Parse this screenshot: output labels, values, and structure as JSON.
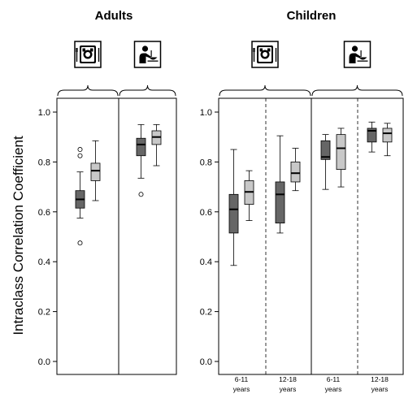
{
  "chart_data": {
    "type": "box",
    "ylabel": "Intraclass Correlation Coefficient",
    "ylim": [
      0.0,
      1.0
    ],
    "yticks": [
      "0.0",
      "0.2",
      "0.4",
      "0.6",
      "0.8",
      "1.0"
    ],
    "colors": {
      "dark": "#666666",
      "light": "#c8c8c8",
      "frame": "#000000"
    },
    "icons": [
      "food-tray-icon",
      "person-eating-icon"
    ],
    "panels": [
      {
        "title": "Adults",
        "groups": [
          {
            "icon": "food-tray-icon",
            "label": [],
            "boxes": [
              {
                "color": "dark",
                "min": 0.575,
                "q1": 0.615,
                "median": 0.65,
                "q3": 0.685,
                "max": 0.76,
                "outliers": [
                  0.85,
                  0.825,
                  0.475
                ]
              },
              {
                "color": "light",
                "min": 0.645,
                "q1": 0.725,
                "median": 0.765,
                "q3": 0.795,
                "max": 0.885,
                "outliers": []
              }
            ]
          },
          {
            "icon": "person-eating-icon",
            "label": [],
            "boxes": [
              {
                "color": "dark",
                "min": 0.735,
                "q1": 0.825,
                "median": 0.87,
                "q3": 0.895,
                "max": 0.95,
                "outliers": [
                  0.67
                ]
              },
              {
                "color": "light",
                "min": 0.785,
                "q1": 0.87,
                "median": 0.9,
                "q3": 0.925,
                "max": 0.95,
                "outliers": []
              }
            ]
          }
        ]
      },
      {
        "title": "Children",
        "groups": [
          {
            "icon": "food-tray-icon",
            "label": [
              "6-11",
              "years"
            ],
            "boxes": [
              {
                "color": "dark",
                "min": 0.385,
                "q1": 0.515,
                "median": 0.61,
                "q3": 0.67,
                "max": 0.85,
                "outliers": []
              },
              {
                "color": "light",
                "min": 0.565,
                "q1": 0.63,
                "median": 0.68,
                "q3": 0.725,
                "max": 0.765,
                "outliers": []
              }
            ]
          },
          {
            "icon": "food-tray-icon",
            "label": [
              "12-18",
              "years"
            ],
            "boxes": [
              {
                "color": "dark",
                "min": 0.515,
                "q1": 0.555,
                "median": 0.67,
                "q3": 0.72,
                "max": 0.905,
                "outliers": []
              },
              {
                "color": "light",
                "min": 0.685,
                "q1": 0.72,
                "median": 0.755,
                "q3": 0.8,
                "max": 0.855,
                "outliers": []
              }
            ]
          },
          {
            "icon": "person-eating-icon",
            "label": [
              "6-11",
              "years"
            ],
            "boxes": [
              {
                "color": "dark",
                "min": 0.69,
                "q1": 0.81,
                "median": 0.82,
                "q3": 0.885,
                "max": 0.91,
                "outliers": []
              },
              {
                "color": "light",
                "min": 0.7,
                "q1": 0.77,
                "median": 0.855,
                "q3": 0.91,
                "max": 0.935,
                "outliers": []
              }
            ]
          },
          {
            "icon": "person-eating-icon",
            "label": [
              "12-18",
              "years"
            ],
            "boxes": [
              {
                "color": "dark",
                "min": 0.84,
                "q1": 0.88,
                "median": 0.925,
                "q3": 0.935,
                "max": 0.96,
                "outliers": []
              },
              {
                "color": "light",
                "min": 0.825,
                "q1": 0.88,
                "median": 0.915,
                "q3": 0.935,
                "max": 0.955,
                "outliers": []
              }
            ]
          }
        ]
      }
    ]
  }
}
